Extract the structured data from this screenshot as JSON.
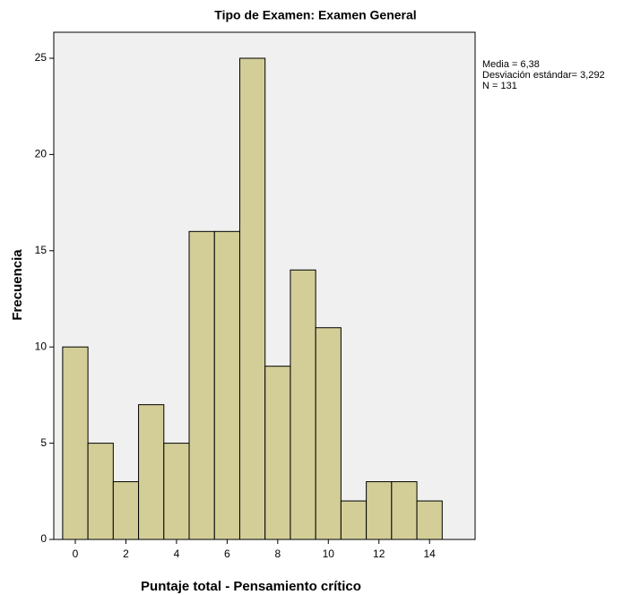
{
  "chart_data": {
    "type": "histogram",
    "title": "Tipo de Examen: Examen General",
    "x_label": "Puntaje total - Pensamiento crítico",
    "y_label": "Frecuencia",
    "bins": [
      -0.5,
      0.5,
      1.5,
      2.5,
      3.5,
      4.5,
      5.5,
      6.5,
      7.5,
      8.5,
      9.5,
      10.5,
      11.5,
      12.5,
      13.5,
      14.5
    ],
    "values": [
      10,
      5,
      3,
      7,
      5,
      16,
      16,
      25,
      9,
      14,
      11,
      2,
      3,
      3,
      2
    ],
    "color": "#d3ce97",
    "xlim": [
      -0.85,
      15.8
    ],
    "ylim": [
      0,
      26.35
    ],
    "xticks": [
      0,
      2,
      4,
      6,
      8,
      10,
      12,
      14
    ],
    "yticks": [
      0,
      5,
      10,
      15,
      20,
      25
    ],
    "annotations": [
      "Media = 6,38",
      "Desviación estándar= 3,292",
      "N = 131"
    ]
  }
}
